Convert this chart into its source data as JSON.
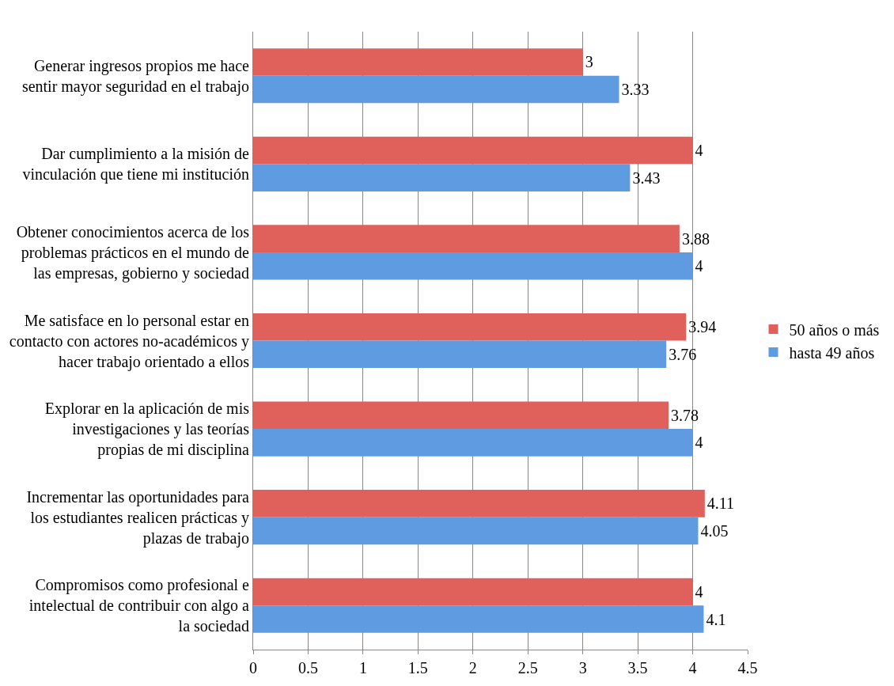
{
  "chart_data": {
    "type": "bar",
    "orientation": "horizontal",
    "categories": [
      "Generar ingresos propios me hace sentir mayor seguridad en el trabajo",
      "Dar cumplimiento a la misión de vinculación que tiene mi institución",
      "Obtener conocimientos acerca de los problemas prácticos en el mundo de las empresas, gobierno y sociedad",
      "Me satisface en lo personal estar en contacto con actores no-académicos y hacer trabajo orientado a ellos",
      "Explorar en la aplicación de mis investigaciones y las teorías propias de mi disciplina",
      "Incrementar las oportunidades para los estudiantes realicen prácticas y plazas de trabajo",
      "Compromisos como profesional e intelectual de contribuir con algo a la sociedad"
    ],
    "series": [
      {
        "name": "50 años o más",
        "color": "#e0605c",
        "values": [
          3,
          4,
          3.88,
          3.94,
          3.78,
          4.11,
          4
        ]
      },
      {
        "name": "hasta 49 años",
        "color": "#5f9be0",
        "values": [
          3.33,
          3.43,
          4,
          3.76,
          4,
          4.05,
          4.1
        ]
      }
    ],
    "xlim": [
      0,
      4.5
    ],
    "xticks": [
      0,
      0.5,
      1,
      1.5,
      2,
      2.5,
      3,
      3.5,
      4,
      4.5
    ],
    "data_labels": true,
    "grid": "x",
    "legend": "right"
  }
}
